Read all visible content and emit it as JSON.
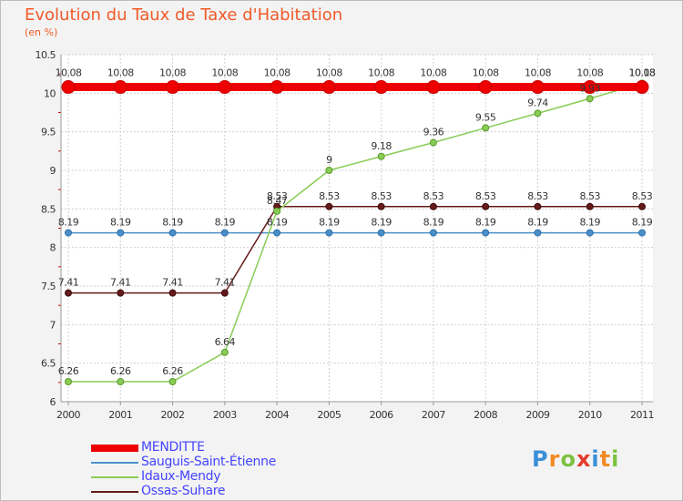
{
  "chart_data": {
    "type": "line",
    "title": "Evolution du Taux de Taxe d'Habitation",
    "subtitle": "(en %)",
    "xlabel": "",
    "ylabel": "",
    "x": [
      "2000",
      "2001",
      "2002",
      "2003",
      "2004",
      "2005",
      "2006",
      "2007",
      "2008",
      "2009",
      "2010",
      "2011"
    ],
    "ylim": [
      6,
      10.5
    ],
    "yticks": [
      "6",
      "6.5",
      "7",
      "7.5",
      "8",
      "8.5",
      "9",
      "9.5",
      "10",
      "10.5"
    ],
    "grid": true,
    "legend_position": "bottom-left",
    "series": [
      {
        "name": "MENDITTE",
        "color": "#ee0000",
        "values": [
          10.08,
          10.08,
          10.08,
          10.08,
          10.08,
          10.08,
          10.08,
          10.08,
          10.08,
          10.08,
          10.08,
          10.08
        ],
        "labels": [
          "10.08",
          "10.08",
          "10.08",
          "10.08",
          "10.08",
          "10.08",
          "10.08",
          "10.08",
          "10.08",
          "10.08",
          "10.08",
          "10.08"
        ]
      },
      {
        "name": "Sauguis-Saint-Étienne",
        "color": "#4a8fc9",
        "values": [
          8.19,
          8.19,
          8.19,
          8.19,
          8.19,
          8.19,
          8.19,
          8.19,
          8.19,
          8.19,
          8.19,
          8.19
        ],
        "labels": [
          "8.19",
          "8.19",
          "8.19",
          "8.19",
          "8.19",
          "8.19",
          "8.19",
          "8.19",
          "8.19",
          "8.19",
          "8.19",
          "8.19"
        ]
      },
      {
        "name": "Idaux-Mendy",
        "color": "#88cc55",
        "values": [
          6.26,
          6.26,
          6.26,
          6.64,
          8.47,
          9,
          9.18,
          9.36,
          9.55,
          9.74,
          9.93,
          10.13
        ],
        "labels": [
          "6.26",
          "6.26",
          "6.26",
          "6.64",
          "8.47",
          "9",
          "9.18",
          "9.36",
          "9.55",
          "9.74",
          "9.93",
          "10.13"
        ]
      },
      {
        "name": "Ossas-Suhare",
        "color": "#661a1a",
        "values": [
          7.41,
          7.41,
          7.41,
          7.41,
          8.53,
          8.53,
          8.53,
          8.53,
          8.53,
          8.53,
          8.53,
          8.53
        ],
        "labels": [
          "7.41",
          "7.41",
          "7.41",
          "7.41",
          "8.53",
          "8.53",
          "8.53",
          "8.53",
          "8.53",
          "8.53",
          "8.53",
          "8.53"
        ]
      }
    ]
  },
  "legend": {
    "items": [
      {
        "label": "MENDITTE",
        "color": "#ee0000"
      },
      {
        "label": "Sauguis-Saint-Étienne",
        "color": "#4a8fc9"
      },
      {
        "label": "Idaux-Mendy",
        "color": "#88cc55"
      },
      {
        "label": "Ossas-Suhare",
        "color": "#661a1a"
      }
    ]
  },
  "logo": {
    "text": "Proxiti",
    "letters": [
      "P",
      "r",
      "o",
      "x",
      "i",
      "t",
      "i"
    ],
    "colors": [
      "#3a8fd8",
      "#f08a24",
      "#7cc242",
      "#e53b2c",
      "#3a8fd8",
      "#f08a24",
      "#7cc242"
    ]
  }
}
